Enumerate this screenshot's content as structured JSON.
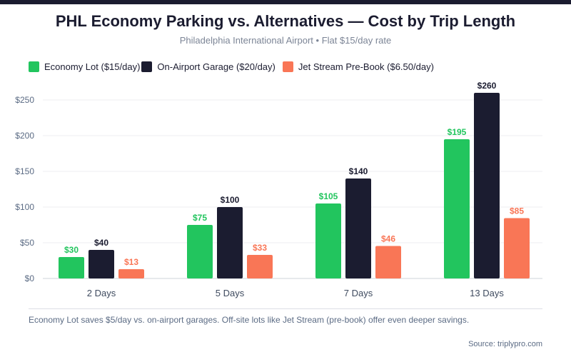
{
  "header": {
    "title": "PHL Economy Parking vs. Alternatives — Cost by Trip Length",
    "subtitle": "Philadelphia International Airport • Flat $15/day rate"
  },
  "chart_data": {
    "type": "bar",
    "title": "PHL Economy Parking vs. Alternatives — Cost by Trip Length",
    "categories": [
      "2 Days",
      "5 Days",
      "7 Days",
      "13 Days"
    ],
    "series": [
      {
        "name": "Economy Lot ($15/day)",
        "color": "#22c55e",
        "values": [
          30,
          75,
          105,
          195
        ],
        "labels": [
          "$30",
          "$75",
          "$105",
          "$195"
        ]
      },
      {
        "name": "On-Airport Garage ($20/day)",
        "color": "#1b1c30",
        "values": [
          40,
          100,
          140,
          260
        ],
        "labels": [
          "$40",
          "$100",
          "$140",
          "$260"
        ]
      },
      {
        "name": "Jet Stream Pre-Book ($6.50/day)",
        "color": "#f97656",
        "values": [
          13,
          33,
          45.5,
          84.5
        ],
        "labels": [
          "$13",
          "$33",
          "$46",
          "$85"
        ]
      }
    ],
    "ylim": [
      0,
      260
    ],
    "yticks": [
      0,
      50,
      100,
      150,
      200,
      250
    ],
    "ytick_labels": [
      "$0",
      "$50",
      "$100",
      "$150",
      "$200",
      "$250"
    ],
    "xlabel": "",
    "ylabel": "",
    "grid": true,
    "legend": "top-left"
  },
  "footer": {
    "note": "Economy Lot saves $5/day vs. on-airport garages. Off-site lots like Jet Stream (pre-book) offer even deeper savings.",
    "source": "Source: triplypro.com"
  }
}
